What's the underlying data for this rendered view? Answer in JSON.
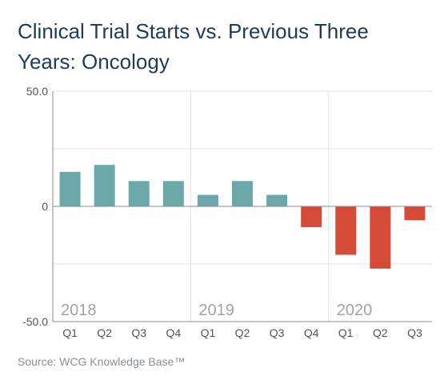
{
  "title_lines": [
    "Clinical Trial Starts vs. Previous Three",
    "Years: Oncology"
  ],
  "source": "Source: WCG Knowledge Base™",
  "colors": {
    "positive": "#6aa8aa",
    "negative": "#d64a38",
    "title": "#1f3b57",
    "grid": "#e3e3e3",
    "axis": "#8c8c8c",
    "tick_text": "#555555",
    "year_text": "#a3a3a3"
  },
  "chart_data": {
    "type": "bar",
    "title": "Clinical Trial Starts vs. Previous Three Years: Oncology",
    "categories": [
      "Q1",
      "Q2",
      "Q3",
      "Q4",
      "Q1",
      "Q2",
      "Q3",
      "Q4",
      "Q1",
      "Q2",
      "Q3"
    ],
    "years": [
      {
        "label": "2018",
        "quarters": [
          "Q1",
          "Q2",
          "Q3",
          "Q4"
        ]
      },
      {
        "label": "2019",
        "quarters": [
          "Q1",
          "Q2",
          "Q3",
          "Q4"
        ]
      },
      {
        "label": "2020",
        "quarters": [
          "Q1",
          "Q2",
          "Q3"
        ]
      }
    ],
    "values": [
      15,
      18,
      11,
      11,
      5,
      11,
      5,
      -9,
      -21,
      -27,
      -6
    ],
    "ylim": [
      -50,
      50
    ],
    "yticks": [
      {
        "value": 50,
        "label": "50.0"
      },
      {
        "value": 0,
        "label": "0"
      },
      {
        "value": -50,
        "label": "-50.0"
      }
    ],
    "y_gridlines": [
      25,
      -25
    ],
    "grid": true,
    "legend": "none"
  }
}
